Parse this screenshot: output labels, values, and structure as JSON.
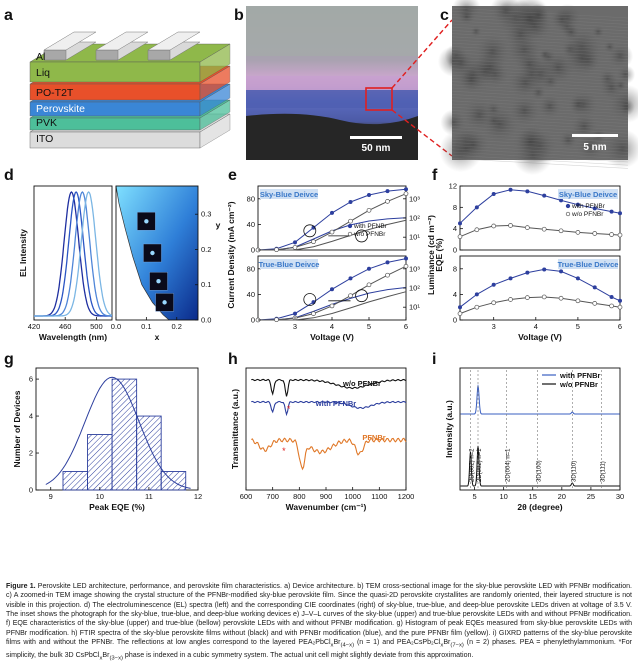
{
  "panel_labels": [
    "a",
    "b",
    "c",
    "d",
    "e",
    "f",
    "g",
    "h",
    "i"
  ],
  "panel_a": {
    "layers": [
      "Al",
      "Liq",
      "PO-T2T",
      "Perovskite",
      "PVK",
      "ITO"
    ],
    "colors": {
      "Al": "#c8c8c8",
      "Liq": "#8fb84a",
      "PO-T2T": "#e8502a",
      "Perovskite": "#3a86d6",
      "PVK": "#4dbf9a",
      "ITO": "#dcdcdc"
    }
  },
  "panel_b": {
    "scale_bar": "50 nm"
  },
  "panel_c": {
    "scale_bar": "5 nm"
  },
  "chart_data": [
    {
      "panel": "d-left",
      "type": "line",
      "xlabel": "Wavelength (nm)",
      "ylabel": "EL Intensity",
      "xlim": [
        420,
        520
      ],
      "xticks": [
        "420",
        "460",
        "500"
      ],
      "series": [
        {
          "peak": 468,
          "fwhm": 22,
          "color": "#1f2fa0"
        },
        {
          "peak": 474,
          "fwhm": 22,
          "color": "#2a55c4"
        },
        {
          "peak": 482,
          "fwhm": 22,
          "color": "#4f86d8"
        },
        {
          "peak": 490,
          "fwhm": 22,
          "color": "#7bb6e4"
        }
      ]
    },
    {
      "panel": "d-right",
      "type": "scatter",
      "xlabel": "x",
      "ylabel": "y",
      "xlim": [
        0.0,
        0.27
      ],
      "ylim": [
        0.0,
        0.38
      ],
      "xticks": [
        "0.0",
        "0.1",
        "0.2"
      ],
      "yticks": [
        "0.0",
        "0.1",
        "0.2",
        "0.3"
      ],
      "points": [
        {
          "x": 0.1,
          "y": 0.28
        },
        {
          "x": 0.12,
          "y": 0.19
        },
        {
          "x": 0.14,
          "y": 0.11
        },
        {
          "x": 0.16,
          "y": 0.05
        }
      ]
    },
    {
      "panel": "e",
      "type": "line",
      "xlabel": "Voltage (V)",
      "ylabel_left": "Current Density (mA cm⁻²)",
      "ylabel_right": "Luminance (cd m⁻²)",
      "subplots": [
        {
          "title": "Sky-Blue Deivce",
          "xlim": [
            2,
            6
          ],
          "ylim_left": [
            0,
            100
          ],
          "yticks_left": [
            "0",
            "40",
            "80"
          ],
          "yticks_right": [
            "10¹",
            "10²",
            "10³"
          ],
          "legend": [
            "with PFNBr",
            "w/o PFNBr"
          ],
          "x": [
            2.0,
            2.5,
            3.0,
            3.5,
            4.0,
            4.5,
            5.0,
            5.5,
            6.0
          ],
          "series": [
            {
              "name": "with PFNBr",
              "values": [
                0,
                2,
                12,
                35,
                58,
                75,
                86,
                92,
                95
              ]
            },
            {
              "name": "w/o PFNBr",
              "values": [
                0,
                0.5,
                4,
                13,
                28,
                45,
                62,
                76,
                88
              ]
            }
          ]
        },
        {
          "title": "True-Blue Deivce",
          "xlim": [
            2,
            6
          ],
          "ylim_left": [
            0,
            100
          ],
          "yticks_left": [
            "0",
            "40",
            "80"
          ],
          "yticks_right": [
            "10¹",
            "10²",
            "10³"
          ],
          "x": [
            2.0,
            2.5,
            3.0,
            3.5,
            4.0,
            4.5,
            5.0,
            5.5,
            6.0
          ],
          "series": [
            {
              "name": "with PFNBr",
              "values": [
                0,
                2,
                10,
                28,
                48,
                65,
                80,
                90,
                96
              ]
            },
            {
              "name": "w/o PFNBr",
              "values": [
                0,
                0.5,
                3,
                10,
                22,
                38,
                55,
                70,
                84
              ]
            }
          ]
        }
      ],
      "xticks": [
        "3",
        "4",
        "5",
        "6"
      ]
    },
    {
      "panel": "f",
      "type": "line",
      "xlabel": "Voltage (V)",
      "ylabel": "EQE (%)",
      "subplots": [
        {
          "title": "Sky-Blue Deivce",
          "xlim": [
            2.2,
            6
          ],
          "ylim": [
            0,
            12
          ],
          "yticks": [
            "0",
            "4",
            "8",
            "12"
          ],
          "legend": [
            "with PFNBr",
            "w/o PFNBr"
          ],
          "x": [
            2.2,
            2.6,
            3.0,
            3.4,
            3.8,
            4.2,
            4.6,
            5.0,
            5.4,
            5.8,
            6.0
          ],
          "series": [
            {
              "name": "with PFNBr",
              "values": [
                5.0,
                8.0,
                10.5,
                11.3,
                11.0,
                10.2,
                9.3,
                8.5,
                7.8,
                7.2,
                6.9
              ]
            },
            {
              "name": "w/o PFNBr",
              "values": [
                2.5,
                3.8,
                4.5,
                4.6,
                4.2,
                3.9,
                3.6,
                3.3,
                3.1,
                2.9,
                2.8
              ]
            }
          ]
        },
        {
          "title": "True-Blue Deivce",
          "xlim": [
            2.2,
            6
          ],
          "ylim": [
            0,
            10
          ],
          "yticks": [
            "0",
            "4",
            "8"
          ],
          "x": [
            2.2,
            2.6,
            3.0,
            3.4,
            3.8,
            4.2,
            4.6,
            5.0,
            5.4,
            5.8,
            6.0
          ],
          "series": [
            {
              "name": "with PFNBr",
              "values": [
                2.0,
                4.0,
                5.5,
                6.5,
                7.4,
                7.9,
                7.6,
                6.5,
                5.1,
                3.6,
                3.0
              ]
            },
            {
              "name": "w/o PFNBr",
              "values": [
                1.0,
                2.0,
                2.7,
                3.2,
                3.5,
                3.6,
                3.4,
                3.0,
                2.6,
                2.2,
                2.0
              ]
            }
          ]
        }
      ],
      "xticks": [
        "3",
        "4",
        "5",
        "6"
      ]
    },
    {
      "panel": "g",
      "type": "bar",
      "xlabel": "Peak EQE (%)",
      "ylabel": "Number of Devices",
      "xlim": [
        8.7,
        12
      ],
      "ylim": [
        0,
        6.6
      ],
      "xticks": [
        "9",
        "10",
        "11",
        "12"
      ],
      "yticks": [
        "0",
        "2",
        "4",
        "6"
      ],
      "bins": [
        [
          9.25,
          9.75
        ],
        [
          9.75,
          10.25
        ],
        [
          10.25,
          10.75
        ],
        [
          10.75,
          11.25
        ],
        [
          11.25,
          11.75
        ]
      ],
      "values": [
        1,
        3,
        6,
        4,
        1
      ]
    },
    {
      "panel": "h",
      "type": "line",
      "xlabel": "Wavenumber (cm⁻¹)",
      "ylabel": "Transmittance (a.u.)",
      "xlim": [
        600,
        1200
      ],
      "xticks": [
        "600",
        "700",
        "800",
        "900",
        "1000",
        "1100",
        "1200"
      ],
      "series": [
        {
          "name": "w/o PFNBr",
          "color": "#111111"
        },
        {
          "name": "with PFNBr",
          "color": "#2d3f9e"
        },
        {
          "name": "PFNBr",
          "color": "#e07828"
        }
      ],
      "marker_x": [
        750,
        750
      ]
    },
    {
      "panel": "i",
      "type": "line",
      "xlabel": "2θ (degree)",
      "ylabel": "Intensity (a.u.)",
      "xlim": [
        2.5,
        30
      ],
      "xticks": [
        "5",
        "10",
        "15",
        "20",
        "25",
        "30"
      ],
      "legend": [
        "with PFNBr",
        "w/o PFNBr"
      ],
      "series": [
        {
          "name": "with PFNBr",
          "color": "#3a5fc0"
        },
        {
          "name": "w/o PFNBr",
          "color": "#111111"
        }
      ],
      "peak_labels": [
        {
          "x": 4.3,
          "text": "2D(002) n=2"
        },
        {
          "x": 5.6,
          "text": "2D(002) n=1"
        },
        {
          "x": 10.5,
          "text": "2D(004) n=1"
        },
        {
          "x": 15.8,
          "text": "3D(100)"
        },
        {
          "x": 21.8,
          "text": "3D(110)"
        },
        {
          "x": 26.8,
          "text": "3D(111)"
        }
      ]
    }
  ],
  "caption": {
    "figure_label": "Figure 1.",
    "text": " Perovskite LED architecture, performance, and perovskite film characteristics. a) Device architecture. b) TEM cross-sectional image for the sky-blue perovskite LED with PFNBr modification. c) A zoomed-in TEM image showing the crystal structure of the PFNBr-modified sky-blue perovskite film. Since the quasi-2D perovskite crystallites are randomly oriented, their layered structure is not visible in this projection. d) The electroluminescence (EL) spectra (left) and the corresponding CIE coordinates (right) of sky-blue, true-blue, and deep-blue perovskite LEDs driven at voltage of 3.5 V. The inset shows the photograph for the sky-blue, true-blue, and deep-blue working devices e) J–V–L curves of the sky-blue (upper) and true-blue perovskite LEDs with and without PFNBr modification. f) EQE characteristics of the sky-blue (upper) and true-blue (bellow) perovskite LEDs with and without PFNBr modification. g) Histogram of peak EQEs measured from sky-blue perovskite LEDs with PFNBr modification. h) FTIR spectra of the sky-blue perovskite films without (black) and with PFNBr modification (blue), and the pure PFNBr film (yellow). i) GIXRD patterns of the sky-blue perovskite films with and without the PFNBr. The reflections at low angles correspond to the layered PEA₂PbCl<sub>x</sub>Br<sub>(4−x)</sub> (n = 1) and PEA₂CsPb₂Cl<sub>x</sub>Br<sub>(7−x)</sub> (n = 2) phases. PEA = phenylethylammonium. *For simplicity, the bulk 3D CsPbCl<sub>x</sub>Br<sub>(3−x)</sub> phase is indexed in a cubic symmetry system. The actual unit cell might slightly deviate from this approximation."
  }
}
